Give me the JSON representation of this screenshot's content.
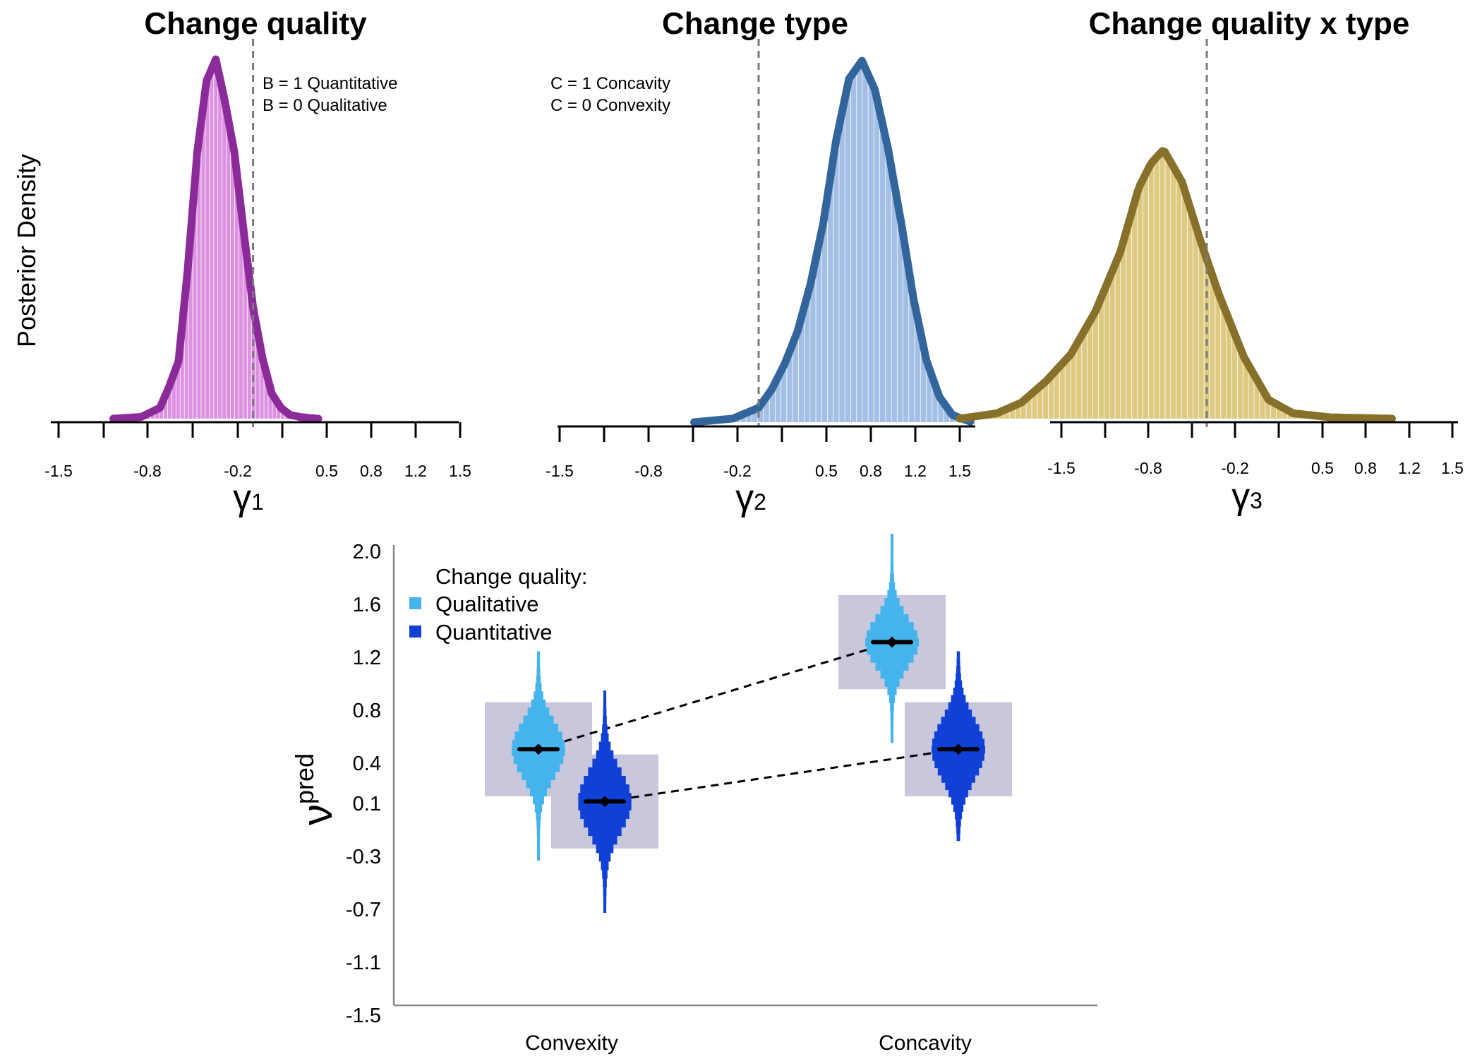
{
  "chart_data": [
    {
      "type": "area",
      "title": "Change quality",
      "xlabel_symbol": "γ",
      "xlabel_subscript": "1",
      "ylabel": "Posterior Density",
      "x_ticks": [
        "-1.5",
        "-0.8",
        "-0.2",
        "0.5",
        "0.8",
        "1.2",
        "1.5"
      ],
      "annotations": [
        "B = 1  Quantitative",
        "B = 0  Qualitative"
      ],
      "reference_line_x": 0,
      "x": [
        -1.5,
        -1.2,
        -1.0,
        -0.9,
        -0.8,
        -0.7,
        -0.6,
        -0.5,
        -0.4,
        -0.3,
        -0.2,
        -0.1,
        0.0,
        0.1,
        0.2,
        0.3,
        0.4,
        0.5,
        0.6,
        0.7
      ],
      "density": [
        0.0,
        0.005,
        0.03,
        0.09,
        0.16,
        0.42,
        0.74,
        0.94,
        1.0,
        0.88,
        0.74,
        0.52,
        0.31,
        0.17,
        0.07,
        0.03,
        0.01,
        0.005,
        0.002,
        0.0
      ],
      "color": "#8B2A99",
      "fill": "#D67EDC"
    },
    {
      "type": "area",
      "title": "Change type",
      "xlabel_symbol": "γ",
      "xlabel_subscript": "2",
      "x_ticks": [
        "-1.5",
        "-0.8",
        "-0.2",
        "0.5",
        "0.8",
        "1.2",
        "1.5"
      ],
      "annotations": [
        "C = 1  Concavity",
        "C = 0  Convexity"
      ],
      "reference_line_x": 0,
      "x": [
        -0.5,
        -0.2,
        0.0,
        0.1,
        0.2,
        0.3,
        0.4,
        0.5,
        0.6,
        0.7,
        0.8,
        0.9,
        1.0,
        1.1,
        1.2,
        1.3,
        1.4,
        1.5,
        1.65
      ],
      "density": [
        0.0,
        0.01,
        0.04,
        0.09,
        0.16,
        0.25,
        0.38,
        0.55,
        0.78,
        0.95,
        1.0,
        0.92,
        0.76,
        0.56,
        0.34,
        0.17,
        0.07,
        0.02,
        0.0
      ],
      "color": "#33659D",
      "fill": "#94B4E2"
    },
    {
      "type": "area",
      "title": "Change quality x type",
      "xlabel_symbol": "γ",
      "xlabel_subscript": "3",
      "x_ticks": [
        "-1.5",
        "-0.8",
        "-0.2",
        "0.5",
        "0.8",
        "1.2",
        "1.5"
      ],
      "reference_line_x": 0,
      "x": [
        -2.0,
        -1.7,
        -1.5,
        -1.3,
        -1.1,
        -0.9,
        -0.7,
        -0.55,
        -0.45,
        -0.35,
        -0.2,
        -0.05,
        0.1,
        0.3,
        0.5,
        0.7,
        1.0,
        1.5
      ],
      "density": [
        0.0,
        0.02,
        0.06,
        0.14,
        0.24,
        0.4,
        0.62,
        0.86,
        0.95,
        1.0,
        0.88,
        0.66,
        0.46,
        0.23,
        0.07,
        0.02,
        0.005,
        0.0
      ],
      "color": "#87702A",
      "fill": "#D7BF6A"
    },
    {
      "type": "interval",
      "ylabel": "ν",
      "ylabel_superscript": "pred",
      "categories": [
        "Convexity",
        "Concavity"
      ],
      "y_ticks": [
        "2.0",
        "1.6",
        "1.2",
        "0.8",
        "0.4",
        "0.1",
        "-0.3",
        "-0.7",
        "-1.1",
        "-1.5"
      ],
      "ylim": [
        -1.5,
        2.0
      ],
      "legend_title": "Change quality:",
      "legend_position": "top-left",
      "series": [
        {
          "name": "Qualitative",
          "color": "#45B4EC",
          "points": [
            {
              "category": "Convexity",
              "mean": 0.15,
              "ci_low": -0.1,
              "ci_high": 0.35,
              "min": -0.7,
              "max": 0.9
            },
            {
              "category": "Concavity",
              "mean": 0.97,
              "ci_low": 0.77,
              "ci_high": 1.17,
              "min": 0.2,
              "max": 1.8
            }
          ]
        },
        {
          "name": "Quantitative",
          "color": "#1140D6",
          "points": [
            {
              "category": "Convexity",
              "mean": -0.25,
              "ci_low": -0.5,
              "ci_high": 0.0,
              "min": -1.1,
              "max": 0.6
            },
            {
              "category": "Concavity",
              "mean": 0.15,
              "ci_low": -0.1,
              "ci_high": 0.4,
              "min": -0.55,
              "max": 0.9
            }
          ]
        }
      ],
      "interval_box_color": "#C8C7DB"
    }
  ]
}
